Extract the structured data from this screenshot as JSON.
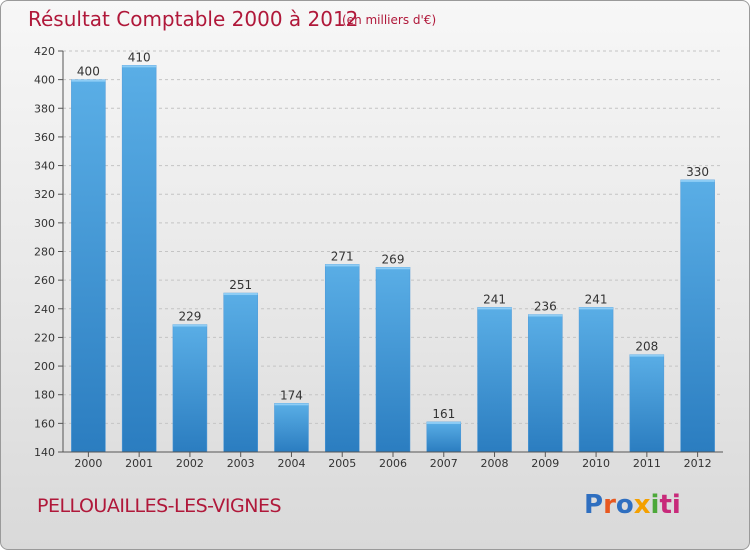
{
  "header": {
    "title": "Résultat Comptable 2000 à 2012",
    "subtitle": "(en milliers d'€)"
  },
  "footer": {
    "commune": "PELLOUAILLES-LES-VIGNES",
    "logo_letters": [
      "P",
      "r",
      "o",
      "x",
      "i",
      "ti"
    ]
  },
  "colors": {
    "title": "#b0183a",
    "bar_top": "#5aaee6",
    "bar_bottom": "#2b7dc0",
    "grid": "#c4c4c4",
    "axis": "#555555"
  },
  "chart_data": {
    "type": "bar",
    "title": "Résultat Comptable 2000 à 2012",
    "subtitle": "(en milliers d'€)",
    "categories": [
      "2000",
      "2001",
      "2002",
      "2003",
      "2004",
      "2005",
      "2006",
      "2007",
      "2008",
      "2009",
      "2010",
      "2011",
      "2012"
    ],
    "values": [
      400,
      410,
      229,
      251,
      174,
      271,
      269,
      161,
      241,
      236,
      241,
      208,
      330
    ],
    "ylim": [
      140,
      420
    ],
    "yticks": [
      140,
      160,
      180,
      200,
      220,
      240,
      260,
      280,
      300,
      320,
      340,
      360,
      380,
      400,
      420
    ],
    "grid": true,
    "data_labels": true
  }
}
